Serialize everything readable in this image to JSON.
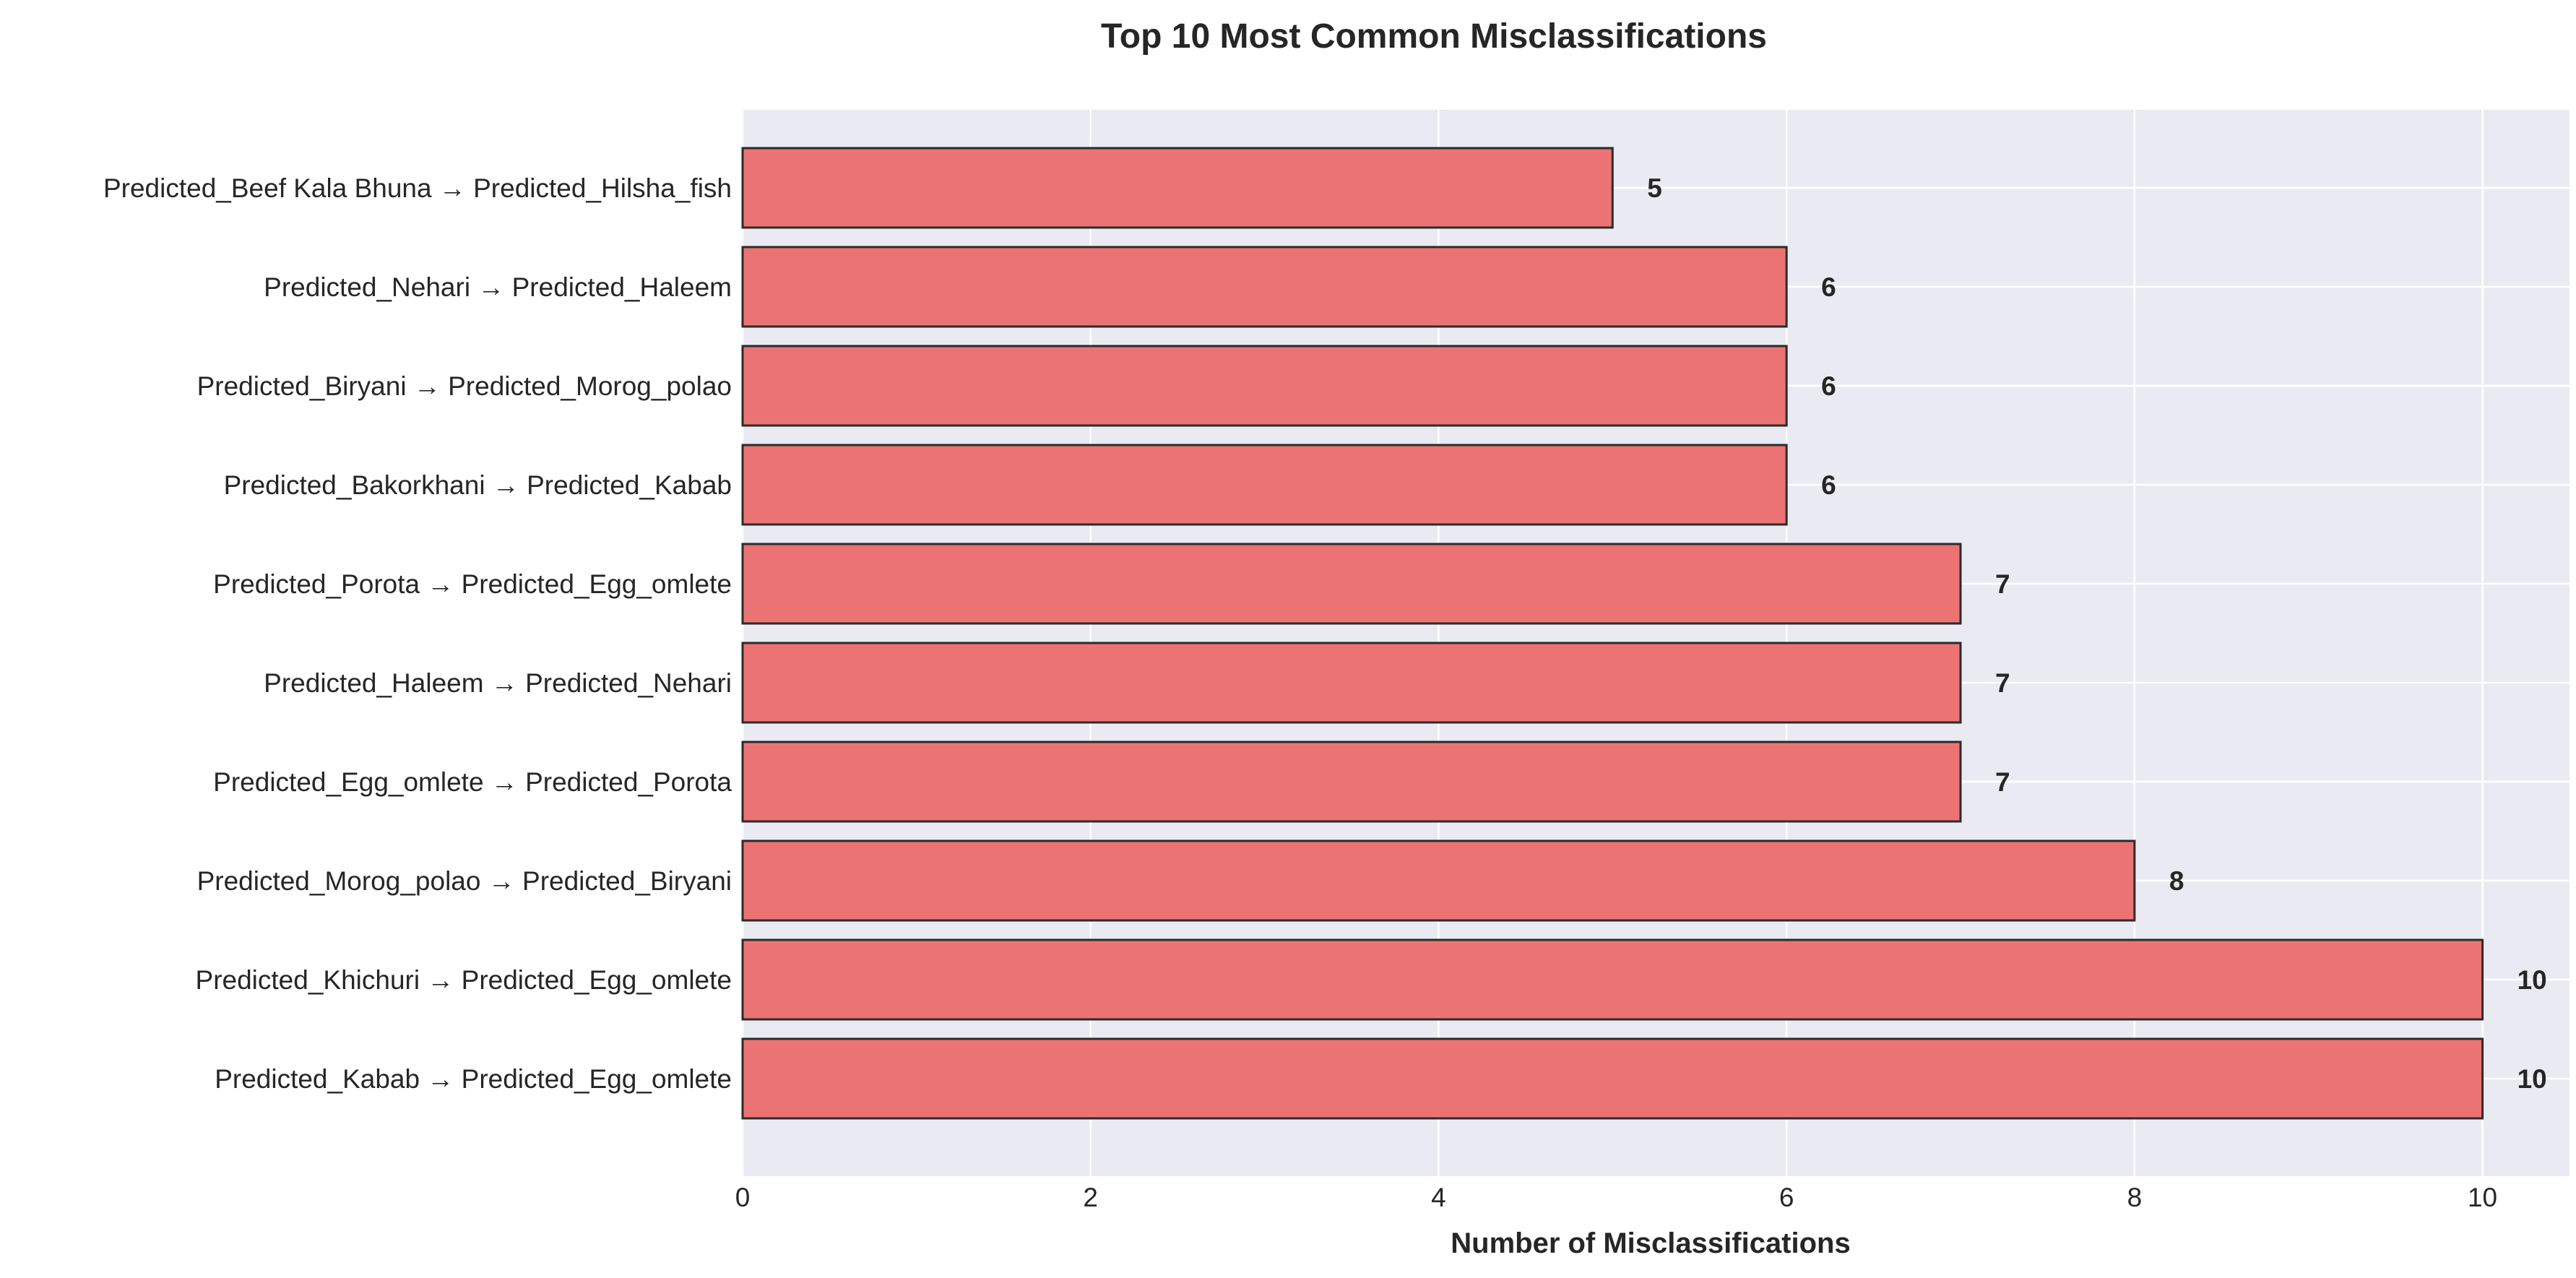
{
  "chart_data": {
    "type": "bar",
    "orientation": "horizontal",
    "title": "Top 10 Most Common Misclassifications",
    "xlabel": "Number of Misclassifications",
    "ylabel": "",
    "xlim": [
      0,
      10.5
    ],
    "xticks": [
      0,
      2,
      4,
      6,
      8,
      10
    ],
    "grid": true,
    "colors": {
      "bar_fill": "#ec7374",
      "bar_edge": "#2b2b2b",
      "plot_background": "#eaeaf2",
      "grid": "#ffffff"
    },
    "categories": [
      "Predicted_Beef Kala Bhuna → Predicted_Hilsha_fish",
      "Predicted_Nehari → Predicted_Haleem",
      "Predicted_Biryani → Predicted_Morog_polao",
      "Predicted_Bakorkhani → Predicted_Kabab",
      "Predicted_Porota → Predicted_Egg_omlete",
      "Predicted_Haleem → Predicted_Nehari",
      "Predicted_Egg_omlete → Predicted_Porota",
      "Predicted_Morog_polao → Predicted_Biryani",
      "Predicted_Khichuri → Predicted_Egg_omlete",
      "Predicted_Kabab → Predicted_Egg_omlete"
    ],
    "values": [
      5,
      6,
      6,
      6,
      7,
      7,
      7,
      8,
      10,
      10
    ]
  }
}
